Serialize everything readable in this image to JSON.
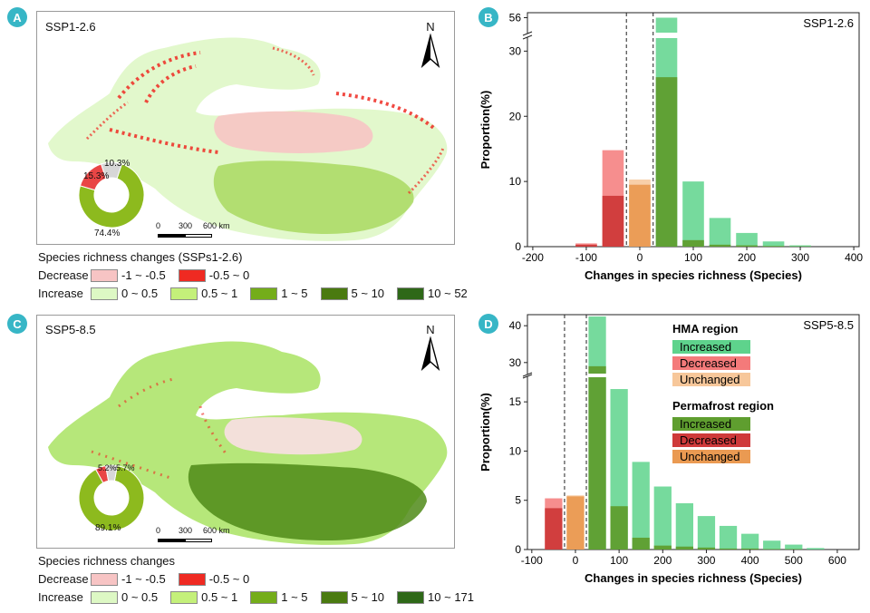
{
  "panels": {
    "A": {
      "label": "A",
      "scenario": "SSP1-2.6"
    },
    "B": {
      "label": "B"
    },
    "C": {
      "label": "C",
      "scenario": "SSP5-8.5"
    },
    "D": {
      "label": "D"
    }
  },
  "map_common": {
    "north": "N",
    "scale_labels": [
      "0",
      "300",
      "600 km"
    ]
  },
  "map_top": {
    "donut": [
      {
        "name": "Increase",
        "value": 74.4,
        "label": "74.4%",
        "color": "#8dba1e"
      },
      {
        "name": "Decrease",
        "value": 15.3,
        "label": "15.3%",
        "color": "#e94545"
      },
      {
        "name": "Unchanged",
        "value": 10.3,
        "label": "10.3%",
        "color": "#d7d7d7"
      }
    ],
    "legend": {
      "title": "Species richness changes (SSPs1-2.6)",
      "decrease_label": "Decrease",
      "increase_label": "Increase",
      "decrease_items": [
        {
          "label": "-1 ~ -0.5",
          "color": "#f7c4c4"
        },
        {
          "label": "-0.5 ~ 0",
          "color": "#ef2a22"
        }
      ],
      "increase_items": [
        {
          "label": "0 ~ 0.5",
          "color": "#ddf8c4"
        },
        {
          "label": "0.5 ~ 1",
          "color": "#c4f07a"
        },
        {
          "label": "1 ~ 5",
          "color": "#74ad1a"
        },
        {
          "label": "5 ~ 10",
          "color": "#4a7a10"
        },
        {
          "label": "10 ~ 52",
          "color": "#2e6818"
        }
      ]
    }
  },
  "map_bottom": {
    "donut": [
      {
        "name": "Increase",
        "value": 89.1,
        "label": "89.1%",
        "color": "#8dba1e"
      },
      {
        "name": "Decrease",
        "value": 5.2,
        "label": "5.2%",
        "color": "#e94545"
      },
      {
        "name": "Unchanged",
        "value": 5.7,
        "label": "5.7%",
        "color": "#d7d7d7"
      }
    ],
    "legend": {
      "title": "Species richness changes",
      "decrease_label": "Decrease",
      "increase_label": "Increase",
      "decrease_items": [
        {
          "label": "-1 ~ -0.5",
          "color": "#f7c4c4"
        },
        {
          "label": "-0.5 ~ 0",
          "color": "#ef2a22"
        }
      ],
      "increase_items": [
        {
          "label": "0 ~ 0.5",
          "color": "#ddf8c4"
        },
        {
          "label": "0.5 ~ 1",
          "color": "#c4f07a"
        },
        {
          "label": "1 ~ 5",
          "color": "#74ad1a"
        },
        {
          "label": "5 ~ 10",
          "color": "#4a7a10"
        },
        {
          "label": "10 ~ 171",
          "color": "#2e6818"
        }
      ]
    }
  },
  "chart_data": [
    {
      "type": "bar",
      "panel": "B",
      "scenario": "SSP1-2.6",
      "xlabel": "Changes in species richness (Species)",
      "ylabel": "Proportion(%)",
      "xlim": [
        -210,
        410
      ],
      "xticks": [
        -200,
        -100,
        0,
        100,
        200,
        300,
        400
      ],
      "ylim_lower": [
        0,
        32
      ],
      "yticks_lower": [
        0,
        10,
        20,
        30
      ],
      "ytick_upper": 56,
      "upper_value_range": [
        53,
        57
      ],
      "dashed_lines_x": [
        -25,
        25
      ],
      "colors": {
        "hma_increased": "#5ed38c",
        "hma_decreased": "#f47a7a",
        "hma_unchanged": "#f7c79a",
        "pf_increased": "#5f9e2f",
        "pf_decreased": "#cf3a3a",
        "pf_unchanged": "#ea9a52"
      },
      "series": [
        {
          "name": "HMA Decreased",
          "region": "HMA",
          "status": "decreased",
          "x": [
            -100,
            -50
          ],
          "values": [
            0.5,
            14.8
          ]
        },
        {
          "name": "HMA Unchanged",
          "region": "HMA",
          "status": "unchanged",
          "x": [
            0
          ],
          "values": [
            10.3
          ]
        },
        {
          "name": "HMA Increased",
          "region": "HMA",
          "status": "increased",
          "x": [
            50,
            100,
            150,
            200,
            250,
            300
          ],
          "values": [
            56.0,
            10.0,
            4.4,
            2.1,
            0.8,
            0.2
          ]
        },
        {
          "name": "Permafrost Decreased",
          "region": "Permafrost",
          "status": "decreased",
          "x": [
            -100,
            -50
          ],
          "values": [
            0.3,
            7.8
          ]
        },
        {
          "name": "Permafrost Unchanged",
          "region": "Permafrost",
          "status": "unchanged",
          "x": [
            0
          ],
          "values": [
            9.5
          ]
        },
        {
          "name": "Permafrost Increased",
          "region": "Permafrost",
          "status": "increased",
          "x": [
            50,
            100,
            150,
            200,
            250,
            300
          ],
          "values": [
            26.0,
            1.0,
            0.3,
            0.2,
            0.1,
            0.05
          ]
        }
      ]
    },
    {
      "type": "bar",
      "panel": "D",
      "scenario": "SSP5-8.5",
      "xlabel": "Changes in species richness (Species)",
      "ylabel": "Proportion(%)",
      "xlim": [
        -110,
        650
      ],
      "xticks": [
        -100,
        0,
        100,
        200,
        300,
        400,
        500,
        600
      ],
      "ylim_lower": [
        0,
        17.5
      ],
      "yticks_lower": [
        0,
        5,
        10,
        15
      ],
      "ylim_upper": [
        27,
        43
      ],
      "yticks_upper": [
        30,
        40
      ],
      "dashed_lines_x": [
        -25,
        25
      ],
      "legend": {
        "hma_title": "HMA region",
        "permafrost_title": "Permafrost region",
        "items": [
          "Increased",
          "Decreased",
          "Unchanged"
        ]
      },
      "colors": {
        "hma_increased": "#5ed38c",
        "hma_decreased": "#f47a7a",
        "hma_unchanged": "#f7c79a",
        "pf_increased": "#5f9e2f",
        "pf_decreased": "#cf3a3a",
        "pf_unchanged": "#ea9a52"
      },
      "series": [
        {
          "name": "HMA Decreased",
          "region": "HMA",
          "status": "decreased",
          "x": [
            -50
          ],
          "values": [
            5.2
          ]
        },
        {
          "name": "HMA Unchanged",
          "region": "HMA",
          "status": "unchanged",
          "x": [
            0
          ],
          "values": [
            5.5
          ]
        },
        {
          "name": "HMA Increased",
          "region": "HMA",
          "status": "increased",
          "x": [
            50,
            100,
            150,
            200,
            250,
            300,
            350,
            400,
            450,
            500,
            550
          ],
          "values": [
            42.5,
            16.3,
            8.9,
            6.4,
            4.7,
            3.4,
            2.4,
            1.6,
            0.9,
            0.5,
            0.15
          ]
        },
        {
          "name": "Permafrost Decreased",
          "region": "Permafrost",
          "status": "decreased",
          "x": [
            -50
          ],
          "values": [
            4.2
          ]
        },
        {
          "name": "Permafrost Unchanged",
          "region": "Permafrost",
          "status": "unchanged",
          "x": [
            0
          ],
          "values": [
            5.4
          ]
        },
        {
          "name": "Permafrost Increased",
          "region": "Permafrost",
          "status": "increased",
          "x": [
            50,
            100,
            150,
            200,
            250,
            300,
            350,
            400,
            450,
            500
          ],
          "values": [
            29.0,
            4.4,
            1.2,
            0.4,
            0.3,
            0.2,
            0.1,
            0.1,
            0.05,
            0.05
          ]
        }
      ]
    }
  ]
}
